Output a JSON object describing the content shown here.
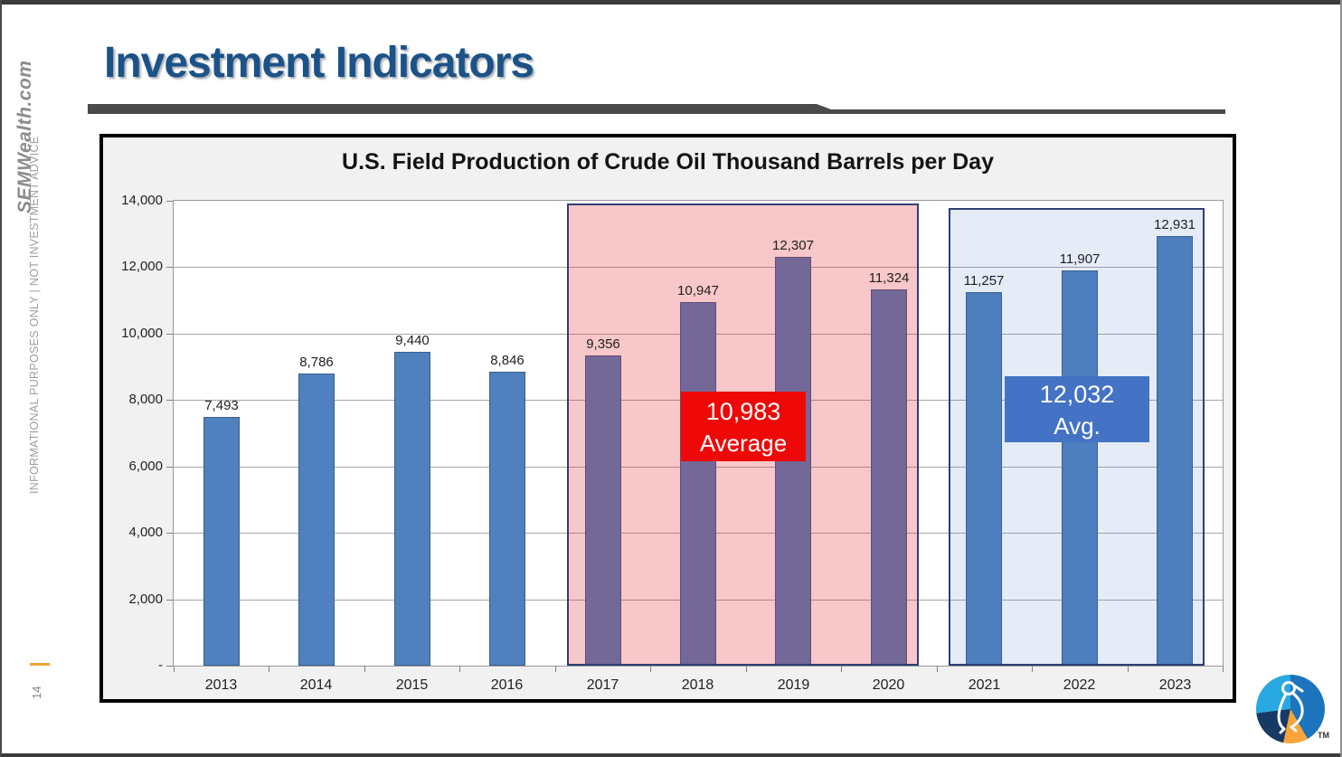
{
  "slide": {
    "title": "Investment Indicators",
    "page_number": "14",
    "sidebar_brand": "SEMWealth.com",
    "sidebar_disclaimer": "INFORMATIONAL PURPOSES ONLY | NOT INVESTMENT ADVICE",
    "trademark": "TM"
  },
  "chart_data": {
    "type": "bar",
    "title": "U.S. Field Production of Crude Oil Thousand Barrels per Day",
    "categories": [
      "2013",
      "2014",
      "2015",
      "2016",
      "2017",
      "2018",
      "2019",
      "2020",
      "2021",
      "2022",
      "2023"
    ],
    "values": [
      7493,
      8786,
      9440,
      8846,
      9356,
      10947,
      12307,
      11324,
      11257,
      11907,
      12931
    ],
    "value_labels": [
      "7,493",
      "8,786",
      "9,440",
      "8,846",
      "9,356",
      "10,947",
      "12,307",
      "11,324",
      "11,257",
      "11,907",
      "12,931"
    ],
    "xlabel": "",
    "ylabel": "",
    "ylim": [
      0,
      14000
    ],
    "ytick_step": 2000,
    "ytick_labels": [
      "14,000",
      "12,000",
      "10,000",
      "8,000",
      "6,000",
      "4,000",
      "2,000",
      "-"
    ],
    "grid": true,
    "legend": "none",
    "highlight_regions": [
      {
        "name": "2017-2020 shaded band",
        "start_category": "2017",
        "end_category": "2020",
        "avg_value": "10,983",
        "avg_caption": "Average",
        "band_fill": "rgba(226,30,38,0.25)",
        "band_border": "#2e3f74",
        "avg_box_color": "#ee0808",
        "bars_appear_as": "#6f6b9b"
      },
      {
        "name": "2021-2023 shaded band",
        "start_category": "2021",
        "end_category": "2023",
        "avg_value": "12,032",
        "avg_caption": "Avg.",
        "band_fill": "rgba(68,114,196,0.14)",
        "band_border": "#2e3f74",
        "avg_box_color": "#4472c4",
        "bars_appear_as": "#4e81bd"
      }
    ],
    "colors": {
      "bar": "#4e81bd",
      "gridline": "#a6a6a6",
      "chart_background": "#f1f1f1",
      "title_blue": "#1b5288",
      "accent_orange": "#f2a33c"
    }
  }
}
